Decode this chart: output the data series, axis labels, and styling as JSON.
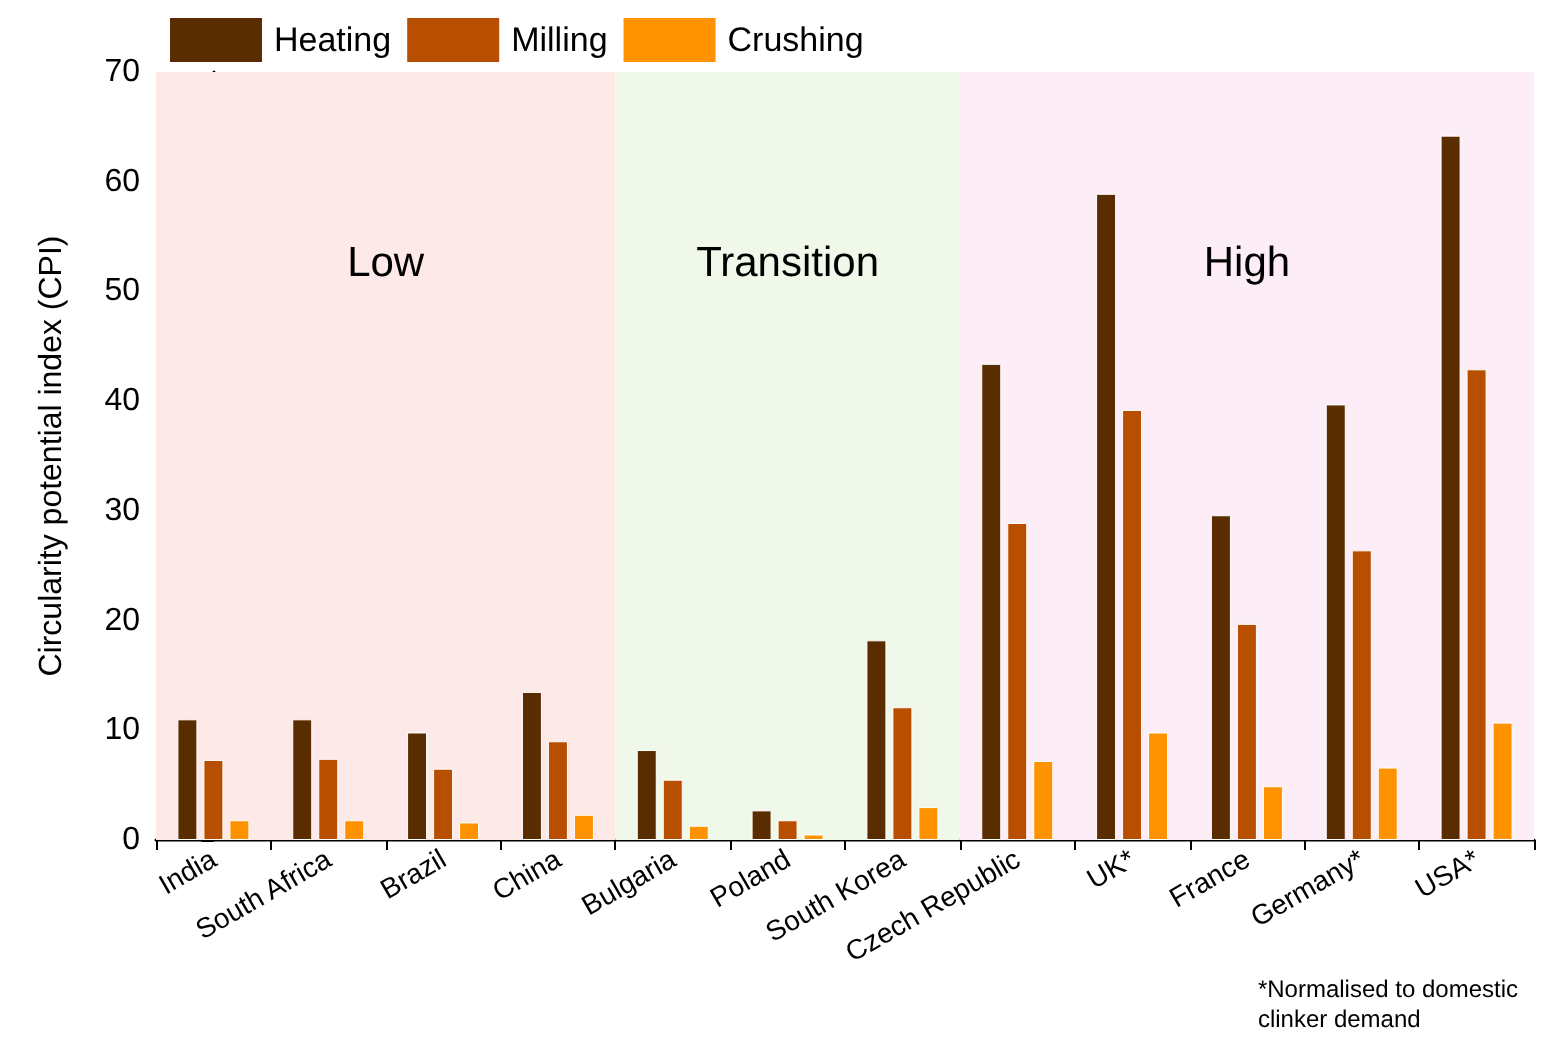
{
  "chart_data": {
    "type": "bar",
    "ylabel": "Circularity potential index (CPI)",
    "categories": [
      "India",
      "South Africa",
      "Brazil",
      "China",
      "Bulgaria",
      "Poland",
      "South Korea",
      "Czech Republic",
      "UK*",
      "France",
      "Germany*",
      "USA*"
    ],
    "series": [
      {
        "name": "Heating",
        "color": "#5a2d00",
        "values": [
          11.0,
          11.0,
          9.8,
          13.5,
          8.2,
          2.7,
          18.2,
          43.4,
          58.9,
          29.6,
          39.7,
          64.2
        ]
      },
      {
        "name": "Milling",
        "color": "#b84f00",
        "values": [
          7.3,
          7.4,
          6.5,
          9.0,
          5.5,
          1.8,
          12.1,
          28.9,
          39.2,
          19.7,
          26.4,
          42.9
        ]
      },
      {
        "name": "Crushing",
        "color": "#ff9200",
        "values": [
          1.8,
          1.8,
          1.6,
          2.3,
          1.3,
          0.5,
          3.0,
          7.2,
          9.8,
          4.9,
          6.6,
          10.7
        ]
      }
    ],
    "ylim": [
      0,
      70
    ],
    "yticks": [
      0,
      10,
      20,
      30,
      40,
      50,
      60,
      70
    ],
    "bands": [
      {
        "axis": "x",
        "from": "India",
        "to": "China",
        "label": "Low",
        "color": "#fdeae8"
      },
      {
        "axis": "x",
        "from": "Bulgaria",
        "to": "South Korea",
        "label": "Transition",
        "color": "#f0f9e9"
      },
      {
        "axis": "x",
        "from": "Czech Republic",
        "to": "USA*",
        "label": "High",
        "color": "#fdedf6"
      }
    ],
    "annotations": [
      "*Normalised to domestic\nclinker demand"
    ],
    "legend": "top left",
    "grid": false
  }
}
